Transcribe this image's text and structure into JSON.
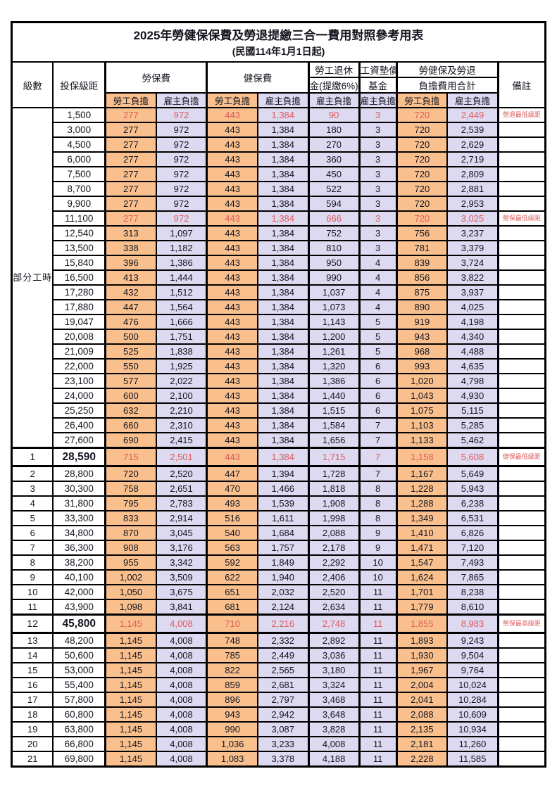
{
  "title": "2025年勞健保保費及勞退提繳三合一費用對照參考用表",
  "subtitle": "(民國114年1月1日起)",
  "headers": {
    "level": "級數",
    "bracket": "投保級距",
    "labor_insurance": "勞保費",
    "health_insurance": "健保費",
    "pension_line1": "勞工退休",
    "pension_line2": "金(提繳6%)",
    "wage_fund_line1": "工資墊償",
    "wage_fund_line2": "基金",
    "total_line1": "勞健保及勞退",
    "total_line2": "負擔費用合計",
    "note": "備註",
    "employee_share": "勞工負擔",
    "employer_share": "雇主負擔"
  },
  "colors": {
    "employee_bg": "#f9c08e",
    "employer_bg": "#dcd9f0",
    "highlight_text": "#e05c5c",
    "border": "#000000"
  },
  "part_time_group": {
    "label": "部分工時",
    "row_span": 23
  },
  "rows": [
    {
      "level": "",
      "bracket": "1,500",
      "values": [
        "277",
        "972",
        "443",
        "1,384",
        "90",
        "3",
        "720",
        "2,449"
      ],
      "note": "勞退最低級距",
      "highlight": true
    },
    {
      "level": "",
      "bracket": "3,000",
      "values": [
        "277",
        "972",
        "443",
        "1,384",
        "180",
        "3",
        "720",
        "2,539"
      ]
    },
    {
      "level": "",
      "bracket": "4,500",
      "values": [
        "277",
        "972",
        "443",
        "1,384",
        "270",
        "3",
        "720",
        "2,629"
      ]
    },
    {
      "level": "",
      "bracket": "6,000",
      "values": [
        "277",
        "972",
        "443",
        "1,384",
        "360",
        "3",
        "720",
        "2,719"
      ]
    },
    {
      "level": "",
      "bracket": "7,500",
      "values": [
        "277",
        "972",
        "443",
        "1,384",
        "450",
        "3",
        "720",
        "2,809"
      ]
    },
    {
      "level": "",
      "bracket": "8,700",
      "values": [
        "277",
        "972",
        "443",
        "1,384",
        "522",
        "3",
        "720",
        "2,881"
      ]
    },
    {
      "level": "",
      "bracket": "9,900",
      "values": [
        "277",
        "972",
        "443",
        "1,384",
        "594",
        "3",
        "720",
        "2,953"
      ]
    },
    {
      "level": "",
      "bracket": "11,100",
      "values": [
        "277",
        "972",
        "443",
        "1,384",
        "666",
        "3",
        "720",
        "3,025"
      ],
      "note": "勞保最低級距",
      "highlight": true
    },
    {
      "level": "",
      "bracket": "12,540",
      "values": [
        "313",
        "1,097",
        "443",
        "1,384",
        "752",
        "3",
        "756",
        "3,237"
      ]
    },
    {
      "level": "",
      "bracket": "13,500",
      "values": [
        "338",
        "1,182",
        "443",
        "1,384",
        "810",
        "3",
        "781",
        "3,379"
      ]
    },
    {
      "level": "",
      "bracket": "15,840",
      "values": [
        "396",
        "1,386",
        "443",
        "1,384",
        "950",
        "4",
        "839",
        "3,724"
      ]
    },
    {
      "level": "",
      "bracket": "16,500",
      "values": [
        "413",
        "1,444",
        "443",
        "1,384",
        "990",
        "4",
        "856",
        "3,822"
      ]
    },
    {
      "level": "",
      "bracket": "17,280",
      "values": [
        "432",
        "1,512",
        "443",
        "1,384",
        "1,037",
        "4",
        "875",
        "3,937"
      ]
    },
    {
      "level": "",
      "bracket": "17,880",
      "values": [
        "447",
        "1,564",
        "443",
        "1,384",
        "1,073",
        "4",
        "890",
        "4,025"
      ]
    },
    {
      "level": "",
      "bracket": "19,047",
      "values": [
        "476",
        "1,666",
        "443",
        "1,384",
        "1,143",
        "5",
        "919",
        "4,198"
      ]
    },
    {
      "level": "",
      "bracket": "20,008",
      "values": [
        "500",
        "1,751",
        "443",
        "1,384",
        "1,200",
        "5",
        "943",
        "4,340"
      ]
    },
    {
      "level": "",
      "bracket": "21,009",
      "values": [
        "525",
        "1,838",
        "443",
        "1,384",
        "1,261",
        "5",
        "968",
        "4,488"
      ]
    },
    {
      "level": "",
      "bracket": "22,000",
      "values": [
        "550",
        "1,925",
        "443",
        "1,384",
        "1,320",
        "6",
        "993",
        "4,635"
      ]
    },
    {
      "level": "",
      "bracket": "23,100",
      "values": [
        "577",
        "2,022",
        "443",
        "1,384",
        "1,386",
        "6",
        "1,020",
        "4,798"
      ]
    },
    {
      "level": "",
      "bracket": "24,000",
      "values": [
        "600",
        "2,100",
        "443",
        "1,384",
        "1,440",
        "6",
        "1,043",
        "4,930"
      ]
    },
    {
      "level": "",
      "bracket": "25,250",
      "values": [
        "632",
        "2,210",
        "443",
        "1,384",
        "1,515",
        "6",
        "1,075",
        "5,115"
      ]
    },
    {
      "level": "",
      "bracket": "26,400",
      "values": [
        "660",
        "2,310",
        "443",
        "1,384",
        "1,584",
        "7",
        "1,103",
        "5,285"
      ]
    },
    {
      "level": "",
      "bracket": "27,600",
      "values": [
        "690",
        "2,415",
        "443",
        "1,384",
        "1,656",
        "7",
        "1,133",
        "5,462"
      ]
    },
    {
      "level": "1",
      "bracket": "28,590",
      "values": [
        "715",
        "2,501",
        "443",
        "1,384",
        "1,715",
        "7",
        "1,158",
        "5,608"
      ],
      "note": "健保最低級距",
      "highlight": true,
      "emphasis": true
    },
    {
      "level": "2",
      "bracket": "28,800",
      "values": [
        "720",
        "2,520",
        "447",
        "1,394",
        "1,728",
        "7",
        "1,167",
        "5,649"
      ]
    },
    {
      "level": "3",
      "bracket": "30,300",
      "values": [
        "758",
        "2,651",
        "470",
        "1,466",
        "1,818",
        "8",
        "1,228",
        "5,943"
      ]
    },
    {
      "level": "4",
      "bracket": "31,800",
      "values": [
        "795",
        "2,783",
        "493",
        "1,539",
        "1,908",
        "8",
        "1,288",
        "6,238"
      ]
    },
    {
      "level": "5",
      "bracket": "33,300",
      "values": [
        "833",
        "2,914",
        "516",
        "1,611",
        "1,998",
        "8",
        "1,349",
        "6,531"
      ]
    },
    {
      "level": "6",
      "bracket": "34,800",
      "values": [
        "870",
        "3,045",
        "540",
        "1,684",
        "2,088",
        "9",
        "1,410",
        "6,826"
      ]
    },
    {
      "level": "7",
      "bracket": "36,300",
      "values": [
        "908",
        "3,176",
        "563",
        "1,757",
        "2,178",
        "9",
        "1,471",
        "7,120"
      ]
    },
    {
      "level": "8",
      "bracket": "38,200",
      "values": [
        "955",
        "3,342",
        "592",
        "1,849",
        "2,292",
        "10",
        "1,547",
        "7,493"
      ]
    },
    {
      "level": "9",
      "bracket": "40,100",
      "values": [
        "1,002",
        "3,509",
        "622",
        "1,940",
        "2,406",
        "10",
        "1,624",
        "7,865"
      ]
    },
    {
      "level": "10",
      "bracket": "42,000",
      "values": [
        "1,050",
        "3,675",
        "651",
        "2,032",
        "2,520",
        "11",
        "1,701",
        "8,238"
      ]
    },
    {
      "level": "11",
      "bracket": "43,900",
      "values": [
        "1,098",
        "3,841",
        "681",
        "2,124",
        "2,634",
        "11",
        "1,779",
        "8,610"
      ]
    },
    {
      "level": "12",
      "bracket": "45,800",
      "values": [
        "1,145",
        "4,008",
        "710",
        "2,216",
        "2,748",
        "11",
        "1,855",
        "8,983"
      ],
      "note": "勞保最高級距",
      "highlight": true,
      "emphasis": true
    },
    {
      "level": "13",
      "bracket": "48,200",
      "values": [
        "1,145",
        "4,008",
        "748",
        "2,332",
        "2,892",
        "11",
        "1,893",
        "9,243"
      ]
    },
    {
      "level": "14",
      "bracket": "50,600",
      "values": [
        "1,145",
        "4,008",
        "785",
        "2,449",
        "3,036",
        "11",
        "1,930",
        "9,504"
      ]
    },
    {
      "level": "15",
      "bracket": "53,000",
      "values": [
        "1,145",
        "4,008",
        "822",
        "2,565",
        "3,180",
        "11",
        "1,967",
        "9,764"
      ]
    },
    {
      "level": "16",
      "bracket": "55,400",
      "values": [
        "1,145",
        "4,008",
        "859",
        "2,681",
        "3,324",
        "11",
        "2,004",
        "10,024"
      ]
    },
    {
      "level": "17",
      "bracket": "57,800",
      "values": [
        "1,145",
        "4,008",
        "896",
        "2,797",
        "3,468",
        "11",
        "2,041",
        "10,284"
      ]
    },
    {
      "level": "18",
      "bracket": "60,800",
      "values": [
        "1,145",
        "4,008",
        "943",
        "2,942",
        "3,648",
        "11",
        "2,088",
        "10,609"
      ]
    },
    {
      "level": "19",
      "bracket": "63,800",
      "values": [
        "1,145",
        "4,008",
        "990",
        "3,087",
        "3,828",
        "11",
        "2,135",
        "10,934"
      ]
    },
    {
      "level": "20",
      "bracket": "66,800",
      "values": [
        "1,145",
        "4,008",
        "1,036",
        "3,233",
        "4,008",
        "11",
        "2,181",
        "11,260"
      ]
    },
    {
      "level": "21",
      "bracket": "69,800",
      "values": [
        "1,145",
        "4,008",
        "1,083",
        "3,378",
        "4,188",
        "11",
        "2,228",
        "11,585"
      ]
    }
  ]
}
